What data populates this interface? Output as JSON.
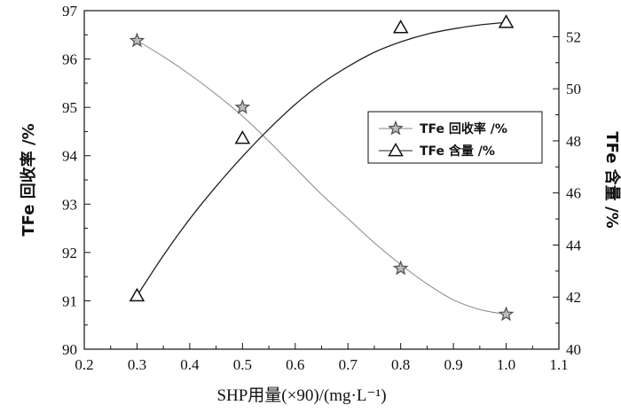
{
  "chart_data": {
    "type": "line",
    "xlabel": "SHP用量(×90)/(mg·L⁻¹)",
    "ylabel_left": "TFe 回收率 /%",
    "ylabel_right": "TFe 含量 /%",
    "xlim": [
      0.2,
      1.1
    ],
    "ylim_left": [
      90,
      97
    ],
    "ylim_right": [
      40,
      53
    ],
    "x_ticks": [
      "0.2",
      "0.3",
      "0.4",
      "0.5",
      "0.6",
      "0.7",
      "0.8",
      "0.9",
      "1.0",
      "1.1"
    ],
    "y_left_ticks": [
      "90",
      "91",
      "92",
      "93",
      "94",
      "95",
      "96",
      "97"
    ],
    "y_right_ticks": [
      "40",
      "42",
      "44",
      "46",
      "48",
      "50",
      "52"
    ],
    "legend_position": "upper-right",
    "series": [
      {
        "name": "TFe 回收率 /%",
        "axis": "left",
        "marker": "star",
        "color": "#888888",
        "x": [
          0.3,
          0.5,
          0.8,
          1.0
        ],
        "values": [
          96.38,
          95.0,
          91.67,
          90.72
        ],
        "fit_curve": {
          "x": [
            0.3,
            0.35,
            0.4,
            0.45,
            0.5,
            0.55,
            0.6,
            0.65,
            0.7,
            0.75,
            0.8,
            0.85,
            0.9,
            0.95,
            1.0
          ],
          "y": [
            96.38,
            96.05,
            95.68,
            95.27,
            94.82,
            94.3,
            93.75,
            93.2,
            92.7,
            92.2,
            91.75,
            91.35,
            91.02,
            90.82,
            90.72
          ]
        }
      },
      {
        "name": "TFe 含量 /%",
        "axis": "right",
        "marker": "triangle",
        "color": "#222222",
        "x": [
          0.3,
          0.5,
          0.8,
          1.0
        ],
        "values": [
          42.05,
          48.1,
          52.35,
          52.55
        ],
        "fit_curve": {
          "x": [
            0.3,
            0.35,
            0.4,
            0.45,
            0.5,
            0.55,
            0.6,
            0.65,
            0.7,
            0.75,
            0.8,
            0.85,
            0.9,
            0.95,
            1.0
          ],
          "y": [
            42.05,
            43.6,
            45.0,
            46.25,
            47.4,
            48.45,
            49.4,
            50.2,
            50.85,
            51.4,
            51.8,
            52.1,
            52.3,
            52.45,
            52.55
          ]
        }
      }
    ]
  }
}
